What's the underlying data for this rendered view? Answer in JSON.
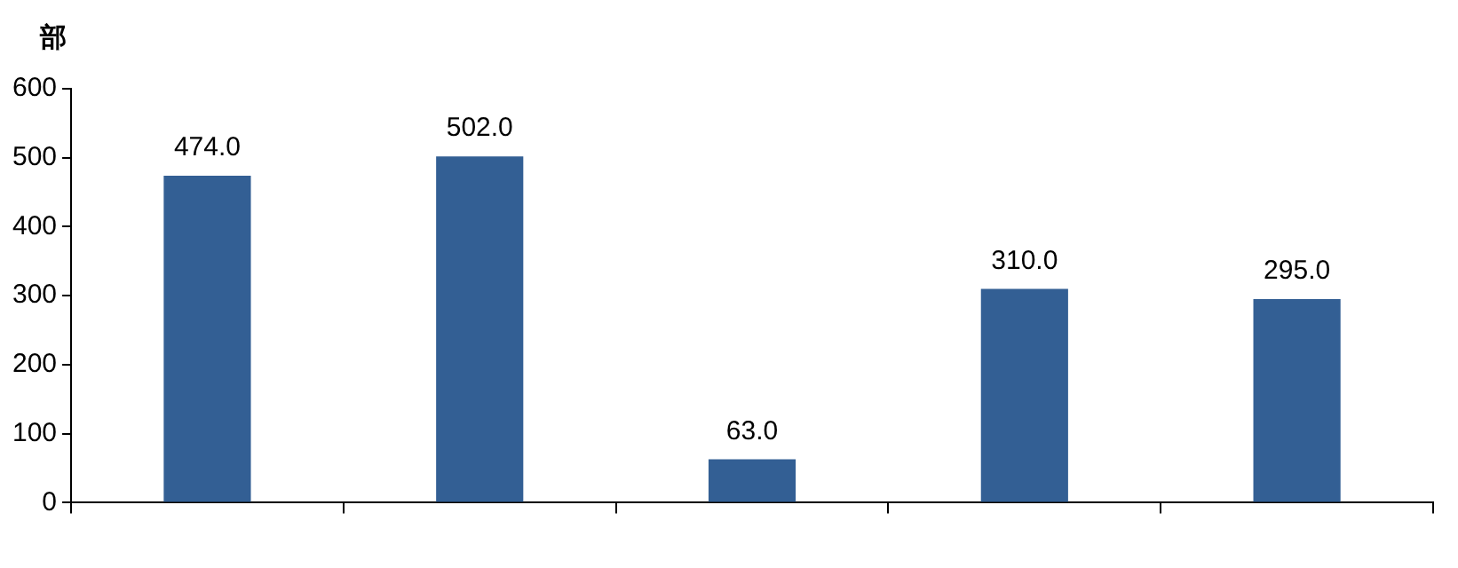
{
  "chart_data": {
    "type": "bar",
    "ylabel": "部",
    "categories": [
      null,
      null,
      null,
      null,
      null
    ],
    "values": [
      474,
      502,
      63,
      310,
      295
    ],
    "value_labels": [
      "474.0",
      "502.0",
      "63.0",
      "310.0",
      "295.0"
    ],
    "color": "#335f94",
    "ylim": [
      0,
      600
    ],
    "yticks": [
      0,
      100,
      200,
      300,
      400,
      500,
      600
    ],
    "grid": false,
    "legend": false
  }
}
